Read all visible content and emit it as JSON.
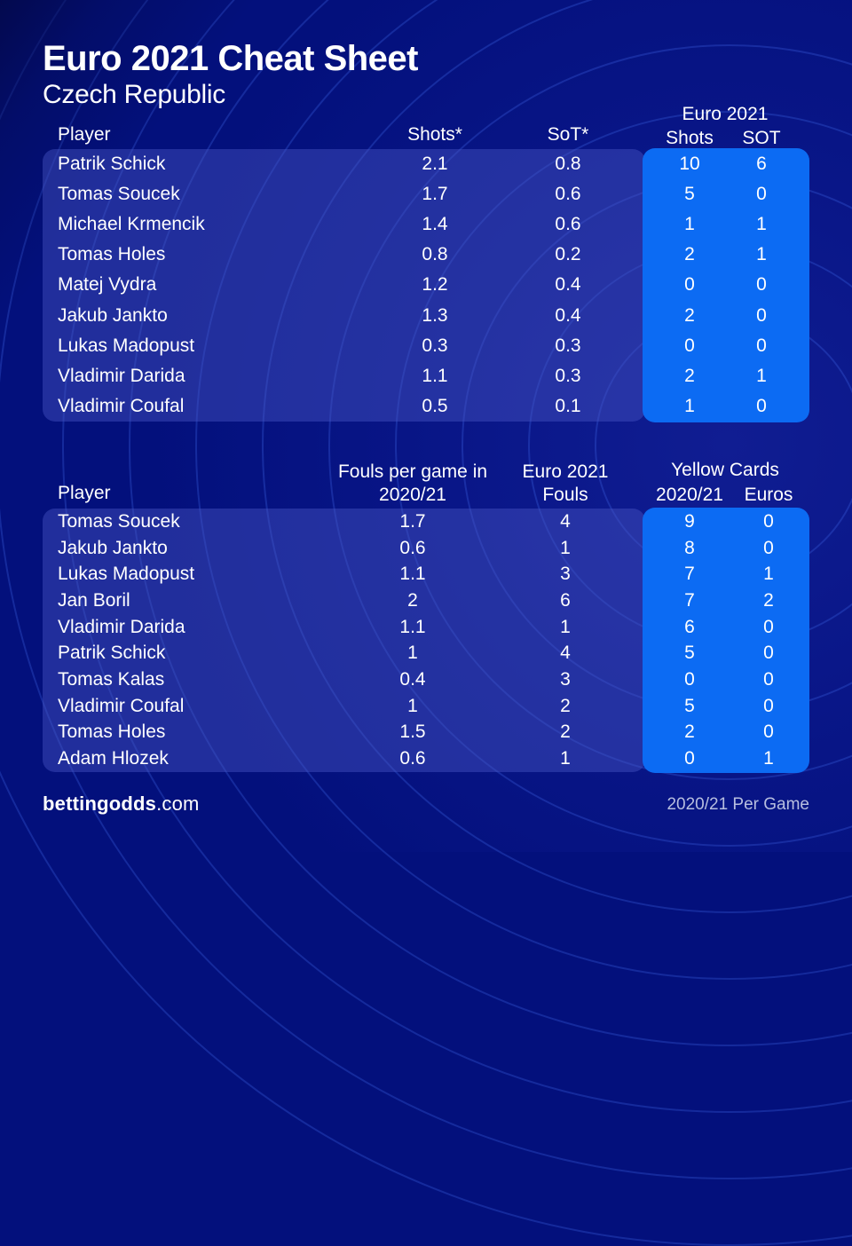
{
  "header": {
    "title": "Euro 2021 Cheat Sheet",
    "subtitle": "Czech Republic"
  },
  "chart_data": [
    {
      "type": "table",
      "id": "shots-table",
      "group_header": "Euro 2021",
      "columns": [
        "Player",
        "Shots*",
        "SoT*",
        "Shots",
        "SOT"
      ],
      "rows": [
        [
          "Patrik Schick",
          "2.1",
          "0.8",
          "10",
          "6"
        ],
        [
          "Tomas Soucek",
          "1.7",
          "0.6",
          "5",
          "0"
        ],
        [
          "Michael Krmencik",
          "1.4",
          "0.6",
          "1",
          "1"
        ],
        [
          "Tomas Holes",
          "0.8",
          "0.2",
          "2",
          "1"
        ],
        [
          "Matej Vydra",
          "1.2",
          "0.4",
          "0",
          "0"
        ],
        [
          "Jakub Jankto",
          "1.3",
          "0.4",
          "2",
          "0"
        ],
        [
          "Lukas Madopust",
          "0.3",
          "0.3",
          "0",
          "0"
        ],
        [
          "Vladimir Darida",
          "1.1",
          "0.3",
          "2",
          "1"
        ],
        [
          "Vladimir Coufal",
          "0.5",
          "0.1",
          "1",
          "0"
        ]
      ]
    },
    {
      "type": "table",
      "id": "fouls-table",
      "group_header": "Yellow Cards",
      "columns": [
        "Player",
        "Fouls per game in 2020/21",
        "Euro 2021 Fouls",
        "2020/21",
        "Euros"
      ],
      "rows": [
        [
          "Tomas Soucek",
          "1.7",
          "4",
          "9",
          "0"
        ],
        [
          "Jakub Jankto",
          "0.6",
          "1",
          "8",
          "0"
        ],
        [
          "Lukas Madopust",
          "1.1",
          "3",
          "7",
          "1"
        ],
        [
          "Jan Boril",
          "2",
          "6",
          "7",
          "2"
        ],
        [
          "Vladimir Darida",
          "1.1",
          "1",
          "6",
          "0"
        ],
        [
          "Patrik Schick",
          "1",
          "4",
          "5",
          "0"
        ],
        [
          "Tomas Kalas",
          "0.4",
          "3",
          "0",
          "0"
        ],
        [
          "Vladimir Coufal",
          "1",
          "2",
          "5",
          "0"
        ],
        [
          "Tomas Holes",
          "1.5",
          "2",
          "2",
          "0"
        ],
        [
          "Adam Hlozek",
          "0.6",
          "1",
          "0",
          "1"
        ]
      ]
    }
  ],
  "footer": {
    "brand_bold": "bettingodds",
    "brand_suffix": ".com",
    "note": "2020/21 Per Game"
  },
  "colors": {
    "background": "#03107c",
    "panel": "#2b36a1",
    "highlight": "#0c6bf3",
    "text": "#ffffff",
    "muted": "#b7bedf",
    "ring": "#436ef2"
  }
}
